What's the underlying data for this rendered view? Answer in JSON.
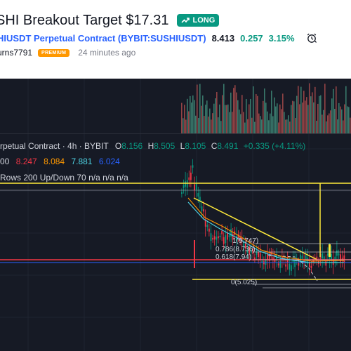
{
  "header": {
    "title": "SHI Breakout Target $17.31",
    "direction_badge": "LONG",
    "symbol_link": "HIUSDT Perpetual Contract (BYBIT:SUSHIUSDT)",
    "price": "8.413",
    "change": "0.257",
    "change_pct": "3.15%",
    "author": "urns7791",
    "author_badge": "PREMIUM",
    "published": "24 minutes ago"
  },
  "legend": {
    "symbol": "rpetual Contract · 4h · BYBIT",
    "ohlc": [
      {
        "key": "O",
        "value": "8.156"
      },
      {
        "key": "H",
        "value": "8.505"
      },
      {
        "key": "L",
        "value": "8.105"
      },
      {
        "key": "C",
        "value": "8.491"
      }
    ],
    "change": "+0.335 (+4.11%)",
    "indicator_prefix": "00",
    "indicator_values": [
      "8.247",
      "8.084",
      "7.881",
      "6.024"
    ],
    "volume_profile": "Rows 200 Up/Down 70  n/a n/a n/a"
  },
  "fib_levels": [
    {
      "label": "1(9.747)"
    },
    {
      "label": "0.786(8.736)"
    },
    {
      "label": "0.618(7.94)"
    },
    {
      "label": "0(5.025)"
    }
  ],
  "colors": {
    "up": "#089981",
    "down": "#f23645",
    "target_line": "#ffeb3b",
    "accent": "#2962ff",
    "chart_bg": "#161a25"
  },
  "icons": [
    "trend-up-arrow-icon",
    "alarm-clock-icon"
  ]
}
